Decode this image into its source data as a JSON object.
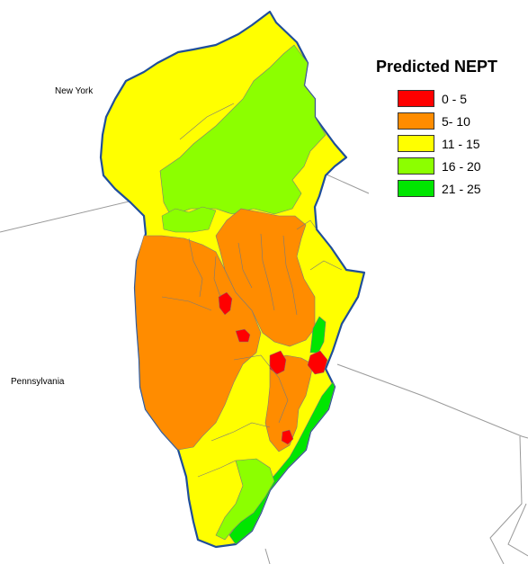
{
  "legend": {
    "title": "Predicted NEPT",
    "items": [
      {
        "label": "0 - 5",
        "color": "#ff0000"
      },
      {
        "label": "5- 10",
        "color": "#ff8c00"
      },
      {
        "label": "11 - 15",
        "color": "#ffff00"
      },
      {
        "label": "16 - 20",
        "color": "#8cff00"
      },
      {
        "label": "21 - 25",
        "color": "#00e600"
      }
    ]
  },
  "labels": {
    "new_york": "New York",
    "pennsylvania": "Pennsylvania"
  },
  "colors": {
    "boundary": "#1f4e9a",
    "internal_border": "#7a7a7a",
    "state_line": "#9a9a9a"
  }
}
